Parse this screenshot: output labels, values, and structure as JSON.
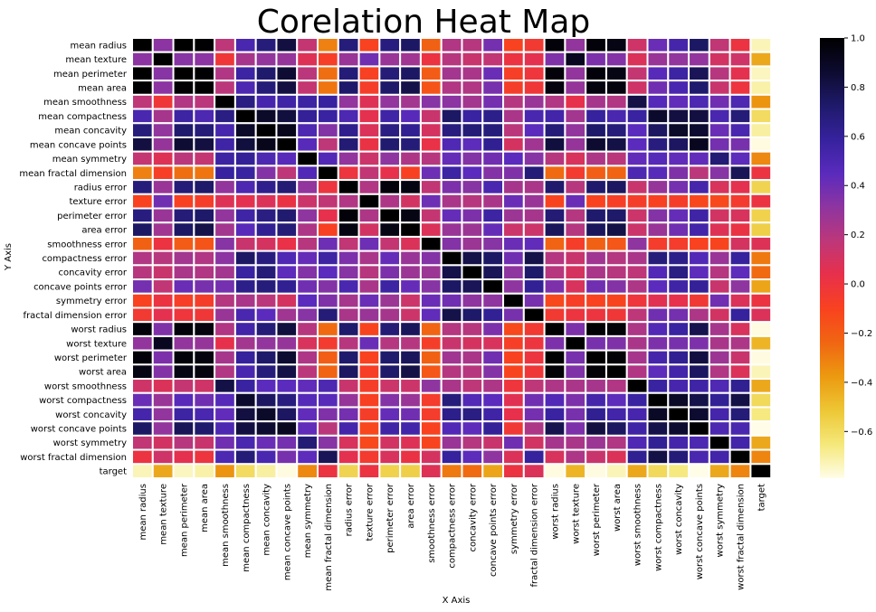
{
  "chart_data": {
    "type": "heatmap",
    "title": "Corelation Heat Map",
    "xlabel": "X Axis",
    "ylabel": "Y Axis",
    "labels": [
      "mean radius",
      "mean texture",
      "mean perimeter",
      "mean area",
      "mean smoothness",
      "mean compactness",
      "mean concavity",
      "mean concave points",
      "mean symmetry",
      "mean fractal dimension",
      "radius error",
      "texture error",
      "perimeter error",
      "area error",
      "smoothness error",
      "compactness error",
      "concavity error",
      "concave points error",
      "symmetry error",
      "fractal dimension error",
      "worst radius",
      "worst texture",
      "worst perimeter",
      "worst area",
      "worst smoothness",
      "worst compactness",
      "worst concavity",
      "worst concave points",
      "worst symmetry",
      "worst fractal dimension",
      "target"
    ],
    "values": [
      [
        1.0,
        0.32,
        1.0,
        0.99,
        0.17,
        0.51,
        0.68,
        0.82,
        0.15,
        -0.31,
        0.68,
        -0.1,
        0.67,
        0.74,
        -0.22,
        0.21,
        0.19,
        0.38,
        -0.1,
        -0.04,
        0.97,
        0.3,
        0.97,
        0.94,
        0.12,
        0.41,
        0.53,
        0.74,
        0.16,
        0.01,
        -0.73
      ],
      [
        0.32,
        1.0,
        0.33,
        0.32,
        -0.02,
        0.24,
        0.3,
        0.29,
        0.07,
        -0.08,
        0.28,
        0.39,
        0.28,
        0.26,
        0.01,
        0.19,
        0.14,
        0.16,
        0.01,
        0.05,
        0.35,
        0.91,
        0.36,
        0.34,
        0.08,
        0.28,
        0.3,
        0.3,
        0.11,
        0.12,
        -0.42
      ],
      [
        1.0,
        0.33,
        1.0,
        0.99,
        0.21,
        0.56,
        0.72,
        0.85,
        0.18,
        -0.26,
        0.69,
        -0.09,
        0.69,
        0.74,
        -0.2,
        0.25,
        0.23,
        0.41,
        -0.08,
        -0.01,
        0.97,
        0.3,
        0.97,
        0.94,
        0.15,
        0.46,
        0.56,
        0.77,
        0.19,
        0.05,
        -0.74
      ],
      [
        0.99,
        0.32,
        0.99,
        1.0,
        0.18,
        0.5,
        0.69,
        0.82,
        0.15,
        -0.28,
        0.73,
        -0.07,
        0.73,
        0.8,
        -0.17,
        0.21,
        0.21,
        0.37,
        -0.07,
        -0.02,
        0.96,
        0.29,
        0.96,
        0.96,
        0.12,
        0.39,
        0.51,
        0.72,
        0.14,
        0.0,
        -0.71
      ],
      [
        0.17,
        -0.02,
        0.21,
        0.18,
        1.0,
        0.66,
        0.52,
        0.55,
        0.56,
        0.58,
        0.3,
        0.07,
        0.3,
        0.25,
        0.33,
        0.32,
        0.25,
        0.38,
        0.2,
        0.28,
        0.21,
        0.04,
        0.24,
        0.21,
        0.81,
        0.47,
        0.43,
        0.5,
        0.39,
        0.5,
        -0.36
      ],
      [
        0.51,
        0.24,
        0.56,
        0.5,
        0.66,
        1.0,
        0.88,
        0.83,
        0.6,
        0.57,
        0.5,
        0.05,
        0.55,
        0.46,
        0.14,
        0.74,
        0.57,
        0.64,
        0.23,
        0.51,
        0.54,
        0.25,
        0.59,
        0.51,
        0.57,
        0.87,
        0.82,
        0.82,
        0.51,
        0.69,
        -0.6
      ],
      [
        0.68,
        0.3,
        0.72,
        0.69,
        0.52,
        0.88,
        1.0,
        0.92,
        0.5,
        0.34,
        0.63,
        0.08,
        0.66,
        0.62,
        0.1,
        0.67,
        0.69,
        0.68,
        0.18,
        0.45,
        0.69,
        0.3,
        0.73,
        0.68,
        0.45,
        0.75,
        0.88,
        0.86,
        0.41,
        0.51,
        -0.7
      ],
      [
        0.82,
        0.29,
        0.85,
        0.82,
        0.55,
        0.83,
        0.92,
        1.0,
        0.46,
        0.17,
        0.7,
        0.02,
        0.71,
        0.69,
        0.03,
        0.49,
        0.44,
        0.62,
        0.1,
        0.26,
        0.83,
        0.29,
        0.86,
        0.81,
        0.45,
        0.67,
        0.75,
        0.91,
        0.38,
        0.37,
        -0.78
      ],
      [
        0.15,
        0.07,
        0.18,
        0.15,
        0.56,
        0.6,
        0.5,
        0.46,
        1.0,
        0.48,
        0.3,
        0.13,
        0.31,
        0.22,
        0.19,
        0.42,
        0.34,
        0.39,
        0.45,
        0.33,
        0.19,
        0.09,
        0.22,
        0.18,
        0.43,
        0.47,
        0.43,
        0.43,
        0.7,
        0.44,
        -0.33
      ],
      [
        -0.31,
        -0.08,
        -0.26,
        -0.28,
        0.58,
        0.57,
        0.34,
        0.17,
        0.48,
        1.0,
        0.0,
        0.16,
        0.04,
        -0.09,
        0.4,
        0.56,
        0.45,
        0.34,
        0.35,
        0.69,
        -0.25,
        -0.05,
        -0.21,
        -0.23,
        0.5,
        0.46,
        0.35,
        0.18,
        0.33,
        0.77,
        0.01
      ],
      [
        0.68,
        0.28,
        0.69,
        0.73,
        0.3,
        0.5,
        0.63,
        0.7,
        0.3,
        0.0,
        1.0,
        0.21,
        0.97,
        0.95,
        0.16,
        0.36,
        0.33,
        0.51,
        0.24,
        0.23,
        0.72,
        0.19,
        0.72,
        0.75,
        0.14,
        0.29,
        0.38,
        0.53,
        0.09,
        0.05,
        -0.57
      ],
      [
        -0.1,
        0.39,
        -0.09,
        -0.07,
        0.07,
        0.05,
        0.08,
        0.02,
        0.13,
        0.16,
        0.21,
        1.0,
        0.22,
        0.11,
        0.4,
        0.23,
        0.19,
        0.23,
        0.41,
        0.28,
        -0.11,
        0.41,
        -0.1,
        -0.08,
        -0.07,
        -0.09,
        -0.07,
        -0.12,
        -0.13,
        -0.05,
        0.01
      ],
      [
        0.67,
        0.28,
        0.69,
        0.73,
        0.3,
        0.55,
        0.66,
        0.71,
        0.31,
        0.04,
        0.97,
        0.22,
        1.0,
        0.94,
        0.15,
        0.42,
        0.36,
        0.56,
        0.27,
        0.24,
        0.7,
        0.2,
        0.72,
        0.73,
        0.13,
        0.34,
        0.42,
        0.55,
        0.11,
        0.09,
        -0.56
      ],
      [
        0.74,
        0.26,
        0.74,
        0.8,
        0.25,
        0.46,
        0.62,
        0.69,
        0.22,
        -0.09,
        0.95,
        0.11,
        0.94,
        1.0,
        0.08,
        0.28,
        0.27,
        0.42,
        0.13,
        0.13,
        0.76,
        0.2,
        0.76,
        0.81,
        0.13,
        0.28,
        0.39,
        0.54,
        0.07,
        0.02,
        -0.55
      ],
      [
        -0.22,
        0.01,
        -0.2,
        -0.17,
        0.33,
        0.14,
        0.1,
        0.03,
        0.19,
        0.4,
        0.16,
        0.4,
        0.15,
        0.08,
        1.0,
        0.34,
        0.27,
        0.33,
        0.41,
        0.43,
        -0.23,
        -0.07,
        -0.22,
        -0.18,
        0.31,
        -0.06,
        -0.06,
        -0.1,
        -0.11,
        0.1,
        0.07
      ],
      [
        0.21,
        0.19,
        0.25,
        0.21,
        0.32,
        0.74,
        0.67,
        0.49,
        0.42,
        0.56,
        0.36,
        0.23,
        0.42,
        0.28,
        0.34,
        1.0,
        0.8,
        0.74,
        0.39,
        0.8,
        0.2,
        0.14,
        0.26,
        0.2,
        0.23,
        0.68,
        0.64,
        0.48,
        0.28,
        0.59,
        -0.29
      ],
      [
        0.19,
        0.14,
        0.23,
        0.21,
        0.25,
        0.57,
        0.69,
        0.44,
        0.34,
        0.45,
        0.33,
        0.19,
        0.36,
        0.27,
        0.27,
        0.8,
        1.0,
        0.77,
        0.31,
        0.73,
        0.19,
        0.1,
        0.23,
        0.19,
        0.17,
        0.48,
        0.66,
        0.44,
        0.2,
        0.44,
        -0.25
      ],
      [
        0.38,
        0.16,
        0.41,
        0.37,
        0.38,
        0.64,
        0.68,
        0.62,
        0.39,
        0.34,
        0.51,
        0.23,
        0.56,
        0.42,
        0.33,
        0.74,
        0.77,
        1.0,
        0.31,
        0.61,
        0.36,
        0.09,
        0.39,
        0.34,
        0.22,
        0.45,
        0.55,
        0.6,
        0.14,
        0.31,
        -0.41
      ],
      [
        -0.1,
        0.01,
        -0.08,
        -0.07,
        0.2,
        0.23,
        0.18,
        0.1,
        0.45,
        0.35,
        0.24,
        0.41,
        0.27,
        0.13,
        0.41,
        0.39,
        0.31,
        0.31,
        1.0,
        0.37,
        -0.13,
        -0.08,
        -0.1,
        -0.11,
        -0.01,
        0.06,
        0.04,
        -0.03,
        0.39,
        0.08,
        0.01
      ],
      [
        -0.04,
        0.05,
        -0.01,
        -0.02,
        0.28,
        0.51,
        0.45,
        0.26,
        0.33,
        0.69,
        0.23,
        0.28,
        0.24,
        0.13,
        0.43,
        0.8,
        0.73,
        0.61,
        0.37,
        1.0,
        -0.04,
        -0.0,
        -0.0,
        -0.02,
        0.17,
        0.39,
        0.38,
        0.22,
        0.11,
        0.59,
        0.08
      ],
      [
        0.97,
        0.35,
        0.97,
        0.96,
        0.21,
        0.54,
        0.69,
        0.83,
        0.19,
        -0.25,
        0.72,
        -0.11,
        0.7,
        0.76,
        -0.23,
        0.2,
        0.19,
        0.36,
        -0.13,
        -0.04,
        1.0,
        0.36,
        0.99,
        0.98,
        0.22,
        0.48,
        0.57,
        0.79,
        0.24,
        0.09,
        -0.78
      ],
      [
        0.3,
        0.91,
        0.3,
        0.29,
        0.04,
        0.25,
        0.3,
        0.29,
        0.09,
        -0.05,
        0.19,
        0.41,
        0.2,
        0.2,
        -0.07,
        0.14,
        0.1,
        0.09,
        -0.08,
        -0.0,
        0.36,
        1.0,
        0.37,
        0.35,
        0.23,
        0.36,
        0.37,
        0.36,
        0.23,
        0.22,
        -0.46
      ],
      [
        0.97,
        0.36,
        0.97,
        0.96,
        0.24,
        0.59,
        0.73,
        0.86,
        0.22,
        -0.21,
        0.72,
        -0.1,
        0.72,
        0.76,
        -0.22,
        0.26,
        0.23,
        0.39,
        -0.1,
        -0.0,
        0.99,
        0.37,
        1.0,
        0.98,
        0.24,
        0.53,
        0.62,
        0.82,
        0.27,
        0.14,
        -0.78
      ],
      [
        0.94,
        0.34,
        0.94,
        0.96,
        0.21,
        0.51,
        0.68,
        0.81,
        0.18,
        -0.23,
        0.75,
        -0.08,
        0.73,
        0.81,
        -0.18,
        0.2,
        0.19,
        0.34,
        -0.11,
        -0.02,
        0.98,
        0.35,
        0.98,
        1.0,
        0.21,
        0.44,
        0.54,
        0.75,
        0.21,
        0.08,
        -0.73
      ],
      [
        0.12,
        0.08,
        0.15,
        0.12,
        0.81,
        0.57,
        0.45,
        0.45,
        0.43,
        0.5,
        0.14,
        -0.07,
        0.13,
        0.13,
        0.31,
        0.23,
        0.17,
        0.22,
        -0.01,
        0.17,
        0.22,
        0.23,
        0.24,
        0.21,
        1.0,
        0.57,
        0.52,
        0.55,
        0.49,
        0.62,
        -0.42
      ],
      [
        0.41,
        0.28,
        0.46,
        0.39,
        0.47,
        0.87,
        0.75,
        0.67,
        0.47,
        0.46,
        0.29,
        -0.09,
        0.34,
        0.28,
        -0.06,
        0.68,
        0.48,
        0.45,
        0.06,
        0.39,
        0.48,
        0.36,
        0.53,
        0.44,
        0.57,
        1.0,
        0.89,
        0.8,
        0.61,
        0.81,
        -0.59
      ],
      [
        0.53,
        0.3,
        0.56,
        0.51,
        0.43,
        0.82,
        0.88,
        0.75,
        0.43,
        0.35,
        0.38,
        -0.07,
        0.42,
        0.39,
        -0.06,
        0.64,
        0.66,
        0.55,
        0.04,
        0.38,
        0.57,
        0.37,
        0.62,
        0.54,
        0.52,
        0.89,
        1.0,
        0.86,
        0.53,
        0.69,
        -0.66
      ],
      [
        0.74,
        0.3,
        0.77,
        0.72,
        0.5,
        0.82,
        0.86,
        0.91,
        0.43,
        0.18,
        0.53,
        -0.12,
        0.55,
        0.54,
        -0.1,
        0.48,
        0.44,
        0.6,
        -0.03,
        0.22,
        0.79,
        0.36,
        0.82,
        0.75,
        0.55,
        0.8,
        0.86,
        1.0,
        0.5,
        0.51,
        -0.79
      ],
      [
        0.16,
        0.11,
        0.19,
        0.14,
        0.39,
        0.51,
        0.41,
        0.38,
        0.7,
        0.33,
        0.09,
        -0.13,
        0.11,
        0.07,
        -0.11,
        0.28,
        0.2,
        0.14,
        0.39,
        0.11,
        0.24,
        0.23,
        0.27,
        0.21,
        0.49,
        0.61,
        0.53,
        0.5,
        1.0,
        0.54,
        -0.42
      ],
      [
        0.01,
        0.12,
        0.05,
        0.0,
        0.5,
        0.69,
        0.51,
        0.37,
        0.44,
        0.77,
        0.05,
        -0.05,
        0.09,
        0.02,
        0.1,
        0.59,
        0.44,
        0.31,
        0.08,
        0.59,
        0.09,
        0.22,
        0.14,
        0.08,
        0.62,
        0.81,
        0.69,
        0.51,
        0.54,
        1.0,
        -0.32
      ],
      [
        -0.73,
        -0.42,
        -0.74,
        -0.71,
        -0.36,
        -0.6,
        -0.7,
        -0.78,
        -0.33,
        0.01,
        -0.57,
        0.01,
        -0.56,
        -0.55,
        0.07,
        -0.29,
        -0.25,
        -0.41,
        0.01,
        0.08,
        -0.78,
        -0.46,
        -0.78,
        -0.73,
        -0.42,
        -0.59,
        -0.66,
        -0.79,
        -0.42,
        -0.32,
        1.0
      ]
    ],
    "colorbar": {
      "min": -0.79,
      "max": 1.0,
      "ticks": [
        "1.0",
        "0.8",
        "0.6",
        "0.4",
        "0.2",
        "0.0",
        "−0.2",
        "−0.4",
        "−0.6"
      ],
      "tick_values": [
        1.0,
        0.8,
        0.6,
        0.4,
        0.2,
        0.0,
        -0.2,
        -0.4,
        -0.6
      ]
    },
    "colormap": [
      "#fffde8",
      "#f5e87a",
      "#edc735",
      "#ec9a10",
      "#f06612",
      "#f9421f",
      "#e8304a",
      "#bd3779",
      "#8e35a0",
      "#5a2bbd",
      "#36229d",
      "#1f1a6b",
      "#0d0b2f",
      "#000000"
    ]
  }
}
